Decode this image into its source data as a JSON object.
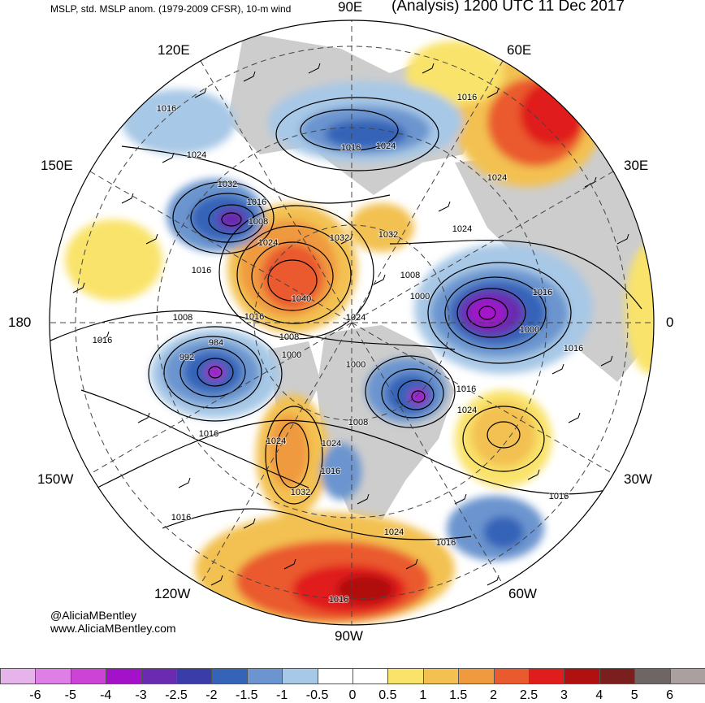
{
  "header": {
    "left_title": "MSLP, std. MSLP anom. (1979-2009 CFSR), 10-m wind",
    "right_title": "(Analysis) 1200 UTC 11 Dec 2017"
  },
  "longitude_labels": {
    "n": "90E",
    "ne": "60E",
    "ene": "30E",
    "e": "0",
    "ese": "30W",
    "se": "60W",
    "s": "90W",
    "sw": "120W",
    "wsw": "150W",
    "w": "180",
    "wnw": "150E",
    "nw": "120E"
  },
  "credits": {
    "handle": "@AliciaMBentley",
    "url": "www.AliciaMBentley.com"
  },
  "colorbar": {
    "ticks": [
      "-6",
      "-5",
      "-4",
      "-3",
      "-2.5",
      "-2",
      "-1.5",
      "-1",
      "-0.5",
      "0",
      "0.5",
      "1",
      "1.5",
      "2",
      "2.5",
      "3",
      "4",
      "5",
      "6"
    ],
    "colors": [
      "#e6b3ea",
      "#de7fe6",
      "#cc44d6",
      "#a312c9",
      "#6a2bb0",
      "#3a3ca8",
      "#3563b8",
      "#6c95cf",
      "#a7c8e6",
      "#ffffff",
      "#ffffff",
      "#f9e36a",
      "#f3c151",
      "#f09a3f",
      "#ea5a2f",
      "#e01d1c",
      "#b01010",
      "#7a1e1e",
      "#6e6565",
      "#aaa0a0"
    ]
  },
  "pressure_labels": [
    {
      "text": "1016",
      "pos": "upper-left lobe"
    },
    {
      "text": "1024",
      "pos": "upper-left"
    },
    {
      "text": "1032",
      "pos": "upper-left"
    },
    {
      "text": "1008",
      "pos": "upper-left low"
    },
    {
      "text": "1016",
      "pos": "upper-left low"
    },
    {
      "text": "1024",
      "pos": "central ridge"
    },
    {
      "text": "1016",
      "pos": "left"
    },
    {
      "text": "1008",
      "pos": "left"
    },
    {
      "text": "1040",
      "pos": "center high"
    },
    {
      "text": "1016",
      "pos": "center"
    },
    {
      "text": "1024",
      "pos": "center"
    },
    {
      "text": "1032",
      "pos": "center-top"
    },
    {
      "text": "1032",
      "pos": "center-right"
    },
    {
      "text": "1016",
      "pos": "top"
    },
    {
      "text": "1024",
      "pos": "top"
    },
    {
      "text": "1016",
      "pos": "top-right"
    },
    {
      "text": "1024",
      "pos": "right"
    },
    {
      "text": "1024",
      "pos": "right"
    },
    {
      "text": "1008",
      "pos": "right"
    },
    {
      "text": "1000",
      "pos": "right"
    },
    {
      "text": "1016",
      "pos": "right"
    },
    {
      "text": "1000",
      "pos": "right low"
    },
    {
      "text": "1016",
      "pos": "right"
    },
    {
      "text": "1016",
      "pos": "left"
    },
    {
      "text": "992",
      "pos": "lower-left low"
    },
    {
      "text": "984",
      "pos": "lower-left low"
    },
    {
      "text": "1008",
      "pos": "center"
    },
    {
      "text": "1000",
      "pos": "center"
    },
    {
      "text": "1000",
      "pos": "center"
    },
    {
      "text": "1016",
      "pos": "lower-right"
    },
    {
      "text": "1024",
      "pos": "lower-right"
    },
    {
      "text": "1008",
      "pos": "lower-center"
    },
    {
      "text": "1016",
      "pos": "lower-left"
    },
    {
      "text": "1024",
      "pos": "lower-center"
    },
    {
      "text": "1024",
      "pos": "lower-center"
    },
    {
      "text": "1016",
      "pos": "lower-center"
    },
    {
      "text": "1032",
      "pos": "lower-center"
    },
    {
      "text": "1016",
      "pos": "lower-right"
    },
    {
      "text": "1016",
      "pos": "lower-left"
    },
    {
      "text": "1024",
      "pos": "bottom"
    },
    {
      "text": "1016",
      "pos": "bottom-right"
    },
    {
      "text": "1016",
      "pos": "bottom"
    }
  ]
}
